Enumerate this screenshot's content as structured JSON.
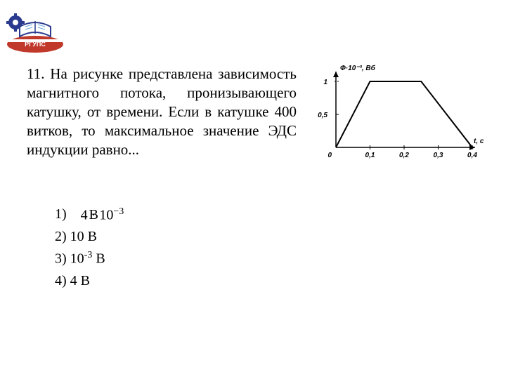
{
  "logo": {
    "text_top": "РГУПС",
    "colors": {
      "blue": "#2a3a8f",
      "light_blue": "#6fa8dc",
      "red": "#c0392b",
      "grey": "#999999",
      "white": "#ffffff"
    }
  },
  "problem": {
    "number": "11.",
    "text": "На рисунке представлена зависимость магнитного потока, пронизывающего катушку, от времени. Если в катушке 400 витков, то максимальное значение ЭДС индукции равно..."
  },
  "answers": {
    "1": {
      "label": "1)",
      "formula_prefix": "4 · 1",
      "formula_overlay": "В",
      "exponent": "−3"
    },
    "2": {
      "label": "2)",
      "text": "10 В"
    },
    "3": {
      "label": "3)",
      "text_prefix": "10",
      "exponent": "-3",
      "text_suffix": " В"
    },
    "4": {
      "label": "4)",
      "text": "4 В"
    }
  },
  "chart": {
    "y_axis_label": "Ф·10⁻³, Вб",
    "x_axis_label": "t, с",
    "y_max_label": "1",
    "y_mid_label": "0,5",
    "x_ticks": [
      "0",
      "0,1",
      "0,2",
      "0,3",
      "0,4"
    ],
    "colors": {
      "axis": "#000000",
      "line": "#000000",
      "text": "#000000",
      "tick_dash": "#000000"
    },
    "style": {
      "line_width": 2,
      "axis_width": 1.5,
      "tick_font_size": 10,
      "label_font_size": 10
    },
    "polyline_points": [
      {
        "x": 0.0,
        "y": 0.0
      },
      {
        "x": 0.1,
        "y": 1.0
      },
      {
        "x": 0.25,
        "y": 1.0
      },
      {
        "x": 0.4,
        "y": 0.0
      }
    ],
    "x_range": [
      0,
      0.4
    ],
    "y_range": [
      0,
      1
    ]
  }
}
